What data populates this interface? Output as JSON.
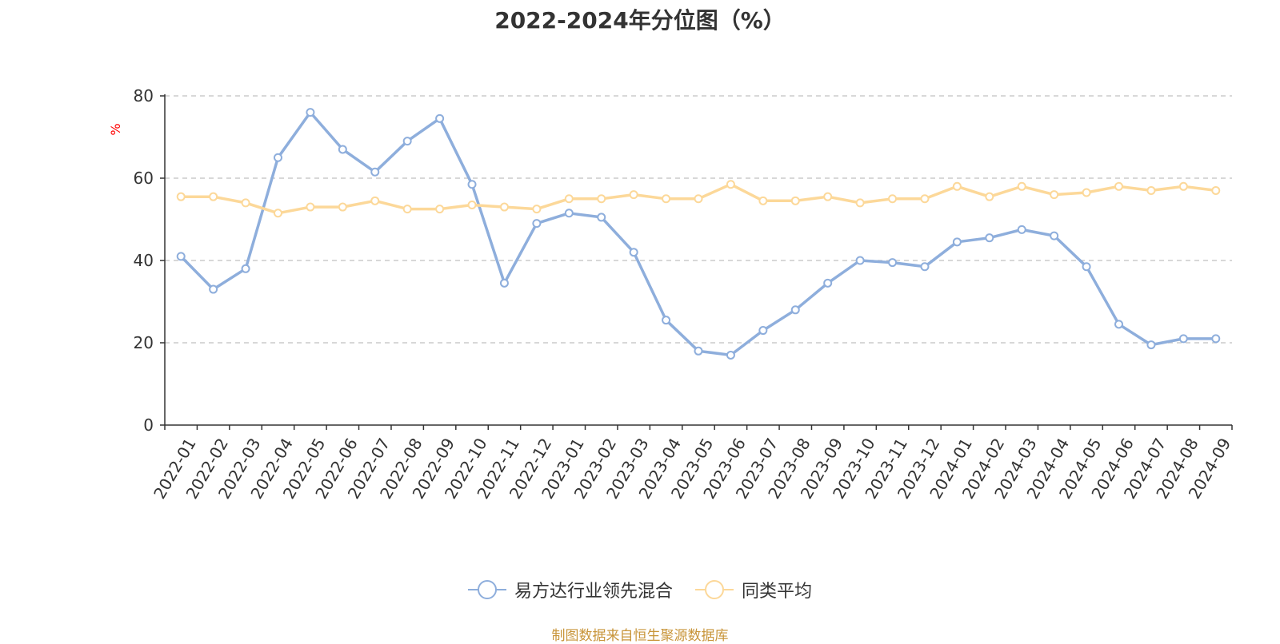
{
  "chart_data": {
    "type": "line",
    "title": "2022-2024年分位图（%）",
    "ylabel": "%",
    "xlabel": "",
    "ylim": [
      0,
      80
    ],
    "yticks": [
      0,
      20,
      40,
      60,
      80
    ],
    "grid": true,
    "legend_position": "bottom",
    "categories": [
      "2022-01",
      "2022-02",
      "2022-03",
      "2022-04",
      "2022-05",
      "2022-06",
      "2022-07",
      "2022-08",
      "2022-09",
      "2022-10",
      "2022-11",
      "2022-12",
      "2023-01",
      "2023-02",
      "2023-03",
      "2023-04",
      "2023-05",
      "2023-06",
      "2023-07",
      "2023-08",
      "2023-09",
      "2023-10",
      "2023-11",
      "2023-12",
      "2024-01",
      "2024-02",
      "2024-03",
      "2024-04",
      "2024-05",
      "2024-06",
      "2024-07",
      "2024-08",
      "2024-09"
    ],
    "series": [
      {
        "name": "易方达行业领先混合",
        "color": "#8eaedc",
        "values": [
          41,
          33,
          38,
          65,
          76,
          67,
          61.5,
          69,
          74.5,
          58.5,
          34.5,
          49,
          51.5,
          50.5,
          42,
          25.5,
          18,
          17,
          23,
          28,
          34.5,
          40,
          39.5,
          38.5,
          44.5,
          45.5,
          47.5,
          46,
          38.5,
          24.5,
          19.5,
          21,
          21
        ]
      },
      {
        "name": "同类平均",
        "color": "#fcd899",
        "values": [
          55.5,
          55.5,
          54,
          51.5,
          53,
          53,
          54.5,
          52.5,
          52.5,
          53.5,
          53,
          52.5,
          55,
          55,
          56,
          55,
          55,
          58.5,
          54.5,
          54.5,
          55.5,
          54,
          55,
          55,
          58,
          55.5,
          58,
          56,
          56.5,
          58,
          57,
          58,
          57
        ]
      }
    ]
  },
  "source_note": "制图数据来自恒生聚源数据库"
}
